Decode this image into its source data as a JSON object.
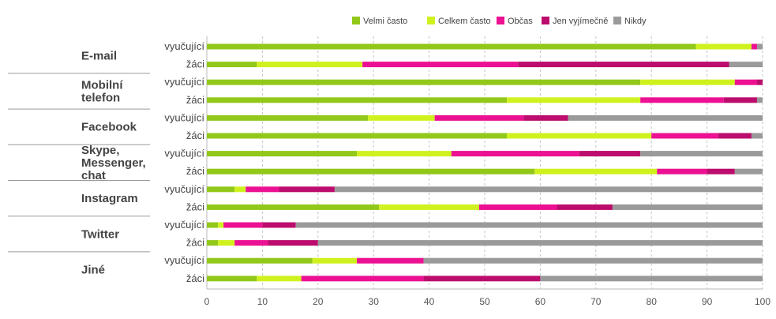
{
  "chart_data": {
    "type": "bar",
    "orientation": "horizontal",
    "stacked": true,
    "xlim": [
      0,
      100
    ],
    "x_ticks": [
      "0",
      "10",
      "20",
      "30",
      "40",
      "50",
      "60",
      "70",
      "80",
      "90",
      "100"
    ],
    "grid": "vertical-dashed",
    "legend_position": "top-right",
    "legend": [
      {
        "name": "Velmi často",
        "color": "#92c81a"
      },
      {
        "name": "Celkem často",
        "color": "#cff21f"
      },
      {
        "name": "Občas",
        "color": "#ec1192"
      },
      {
        "name": "Jen vyjímečně",
        "color": "#bc0c6d"
      },
      {
        "name": "Nikdy",
        "color": "#9a9a9a"
      }
    ],
    "groups": [
      {
        "label": "E-mail",
        "rows": [
          {
            "label": "vyučující",
            "values": [
              88,
              10,
              1,
              0,
              1
            ]
          },
          {
            "label": "žáci",
            "values": [
              9,
              19,
              28,
              38,
              6
            ]
          }
        ]
      },
      {
        "label": "Mobilní telefon",
        "rows": [
          {
            "label": "vyučující",
            "values": [
              78,
              17,
              4,
              1,
              0
            ]
          },
          {
            "label": "žáci",
            "values": [
              54,
              24,
              15,
              6,
              1
            ]
          }
        ]
      },
      {
        "label": "Facebook",
        "rows": [
          {
            "label": "vyučující",
            "values": [
              29,
              12,
              16,
              8,
              35
            ]
          },
          {
            "label": "žáci",
            "values": [
              54,
              26,
              12,
              6,
              2
            ]
          }
        ]
      },
      {
        "label": "Skype, Messenger, chat",
        "rows": [
          {
            "label": "vyučující",
            "values": [
              27,
              17,
              23,
              11,
              22
            ]
          },
          {
            "label": "žáci",
            "values": [
              59,
              22,
              9,
              5,
              5
            ]
          }
        ]
      },
      {
        "label": "Instagram",
        "rows": [
          {
            "label": "vyučující",
            "values": [
              5,
              2,
              6,
              10,
              77
            ]
          },
          {
            "label": "žáci",
            "values": [
              31,
              18,
              14,
              10,
              27
            ]
          }
        ]
      },
      {
        "label": "Twitter",
        "rows": [
          {
            "label": "vyučující",
            "values": [
              2,
              1,
              7,
              6,
              84
            ]
          },
          {
            "label": "žáci",
            "values": [
              2,
              3,
              6,
              9,
              80
            ]
          }
        ]
      },
      {
        "label": "Jiné",
        "rows": [
          {
            "label": "vyučující",
            "values": [
              19,
              8,
              12,
              0,
              61
            ]
          },
          {
            "label": "žáci",
            "values": [
              9,
              8,
              22,
              21,
              40
            ]
          }
        ]
      }
    ]
  }
}
